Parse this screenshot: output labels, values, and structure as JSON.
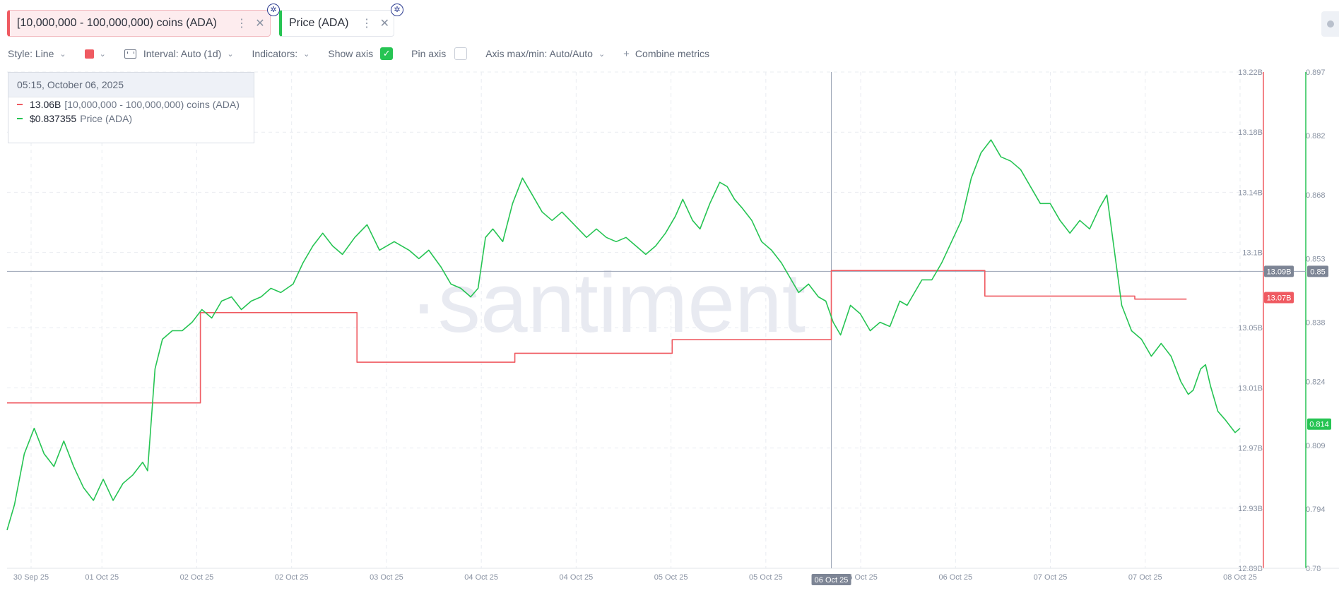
{
  "metrics": [
    {
      "label": "[10,000,000 - 100,000,000) coins (ADA)",
      "color": "#ef5a61"
    },
    {
      "label": "Price (ADA)",
      "color": "#26c453"
    }
  ],
  "toolbar": {
    "style": "Style: Line",
    "interval": "Interval: Auto (1d)",
    "indicators": "Indicators:",
    "show_axis": "Show axis",
    "pin_axis": "Pin axis",
    "axis_maxmin": "Axis max/min: Auto/Auto",
    "combine": "Combine metrics"
  },
  "tooltip": {
    "date": "05:15, October 06, 2025",
    "rows": [
      {
        "value": "13.06B",
        "name": "[10,000,000 - 100,000,000) coins (ADA)",
        "color": "#ef5a61"
      },
      {
        "value": "$0.837355",
        "name": "Price (ADA)",
        "color": "#26c453"
      }
    ]
  },
  "watermark": "·santiment",
  "chart_data": {
    "type": "line",
    "x_ticks": [
      "30 Sep 25",
      "01 Oct 25",
      "02 Oct 25",
      "02 Oct 25",
      "03 Oct 25",
      "04 Oct 25",
      "04 Oct 25",
      "05 Oct 25",
      "05 Oct 25",
      "06 Oct 25",
      "06 Oct 25",
      "07 Oct 25",
      "07 Oct 25",
      "08 Oct 25"
    ],
    "x_range": [
      0,
      1
    ],
    "crosshair": {
      "x": 0.6685,
      "label": "06 Oct 25",
      "left_value_label": "13.09B",
      "right_value_label": "0.85",
      "y_price": 0.85
    },
    "left_axis": {
      "ticks": [
        12.89,
        12.93,
        12.97,
        13.01,
        13.05,
        13.1,
        13.14,
        13.18,
        13.22
      ],
      "tick_labels": [
        "12.89B",
        "12.93B",
        "12.97B",
        "13.01B",
        "13.05B",
        "13.1B",
        "13.14B",
        "13.18B",
        "13.22B"
      ],
      "range": [
        12.89,
        13.22
      ],
      "color": "#ef5a61",
      "last_label": "13.07B",
      "last_value": 13.07
    },
    "right_axis": {
      "ticks": [
        0.78,
        0.794,
        0.809,
        0.824,
        0.838,
        0.853,
        0.868,
        0.882,
        0.897
      ],
      "tick_labels": [
        "0.78",
        "0.794",
        "0.809",
        "0.824",
        "0.838",
        "0.853",
        "0.868",
        "0.882",
        "0.897"
      ],
      "range": [
        0.78,
        0.897
      ],
      "color": "#26c453",
      "last_label": "0.814",
      "last_value": 0.814
    },
    "grid": true,
    "series": [
      {
        "name": "[10,000,000 - 100,000,000) coins (ADA)",
        "axis": "left",
        "step": true,
        "points": [
          [
            0,
            13.0
          ],
          [
            0.1568,
            13.0
          ],
          [
            0.1568,
            13.06
          ],
          [
            0.2838,
            13.06
          ],
          [
            0.2838,
            13.027
          ],
          [
            0.4118,
            13.027
          ],
          [
            0.4118,
            13.033
          ],
          [
            0.5394,
            13.033
          ],
          [
            0.5394,
            13.042
          ],
          [
            0.6685,
            13.042
          ],
          [
            0.6685,
            13.088
          ],
          [
            0.793,
            13.088
          ],
          [
            0.793,
            13.071
          ],
          [
            0.9146,
            13.071
          ],
          [
            0.9146,
            13.069
          ],
          [
            0.9566,
            13.069
          ]
        ]
      },
      {
        "name": "Price (ADA)",
        "axis": "right",
        "points": [
          [
            0,
            0.789
          ],
          [
            0.006,
            0.795
          ],
          [
            0.014,
            0.807
          ],
          [
            0.022,
            0.813
          ],
          [
            0.03,
            0.807
          ],
          [
            0.038,
            0.804
          ],
          [
            0.046,
            0.81
          ],
          [
            0.054,
            0.804
          ],
          [
            0.062,
            0.799
          ],
          [
            0.07,
            0.796
          ],
          [
            0.078,
            0.801
          ],
          [
            0.086,
            0.796
          ],
          [
            0.094,
            0.8
          ],
          [
            0.102,
            0.802
          ],
          [
            0.11,
            0.805
          ],
          [
            0.114,
            0.803
          ],
          [
            0.12,
            0.827
          ],
          [
            0.126,
            0.834
          ],
          [
            0.134,
            0.836
          ],
          [
            0.142,
            0.836
          ],
          [
            0.15,
            0.838
          ],
          [
            0.158,
            0.841
          ],
          [
            0.166,
            0.839
          ],
          [
            0.174,
            0.843
          ],
          [
            0.182,
            0.844
          ],
          [
            0.19,
            0.841
          ],
          [
            0.198,
            0.843
          ],
          [
            0.206,
            0.844
          ],
          [
            0.214,
            0.846
          ],
          [
            0.222,
            0.845
          ],
          [
            0.232,
            0.847
          ],
          [
            0.24,
            0.852
          ],
          [
            0.248,
            0.856
          ],
          [
            0.256,
            0.859
          ],
          [
            0.264,
            0.856
          ],
          [
            0.272,
            0.854
          ],
          [
            0.282,
            0.858
          ],
          [
            0.292,
            0.861
          ],
          [
            0.302,
            0.855
          ],
          [
            0.314,
            0.857
          ],
          [
            0.326,
            0.855
          ],
          [
            0.334,
            0.853
          ],
          [
            0.342,
            0.855
          ],
          [
            0.352,
            0.851
          ],
          [
            0.36,
            0.847
          ],
          [
            0.368,
            0.846
          ],
          [
            0.376,
            0.844
          ],
          [
            0.382,
            0.846
          ],
          [
            0.388,
            0.858
          ],
          [
            0.394,
            0.86
          ],
          [
            0.402,
            0.857
          ],
          [
            0.41,
            0.866
          ],
          [
            0.418,
            0.872
          ],
          [
            0.426,
            0.868
          ],
          [
            0.434,
            0.864
          ],
          [
            0.442,
            0.862
          ],
          [
            0.45,
            0.864
          ],
          [
            0.46,
            0.861
          ],
          [
            0.47,
            0.858
          ],
          [
            0.478,
            0.86
          ],
          [
            0.486,
            0.858
          ],
          [
            0.494,
            0.857
          ],
          [
            0.502,
            0.858
          ],
          [
            0.51,
            0.856
          ],
          [
            0.518,
            0.854
          ],
          [
            0.526,
            0.856
          ],
          [
            0.534,
            0.859
          ],
          [
            0.542,
            0.863
          ],
          [
            0.548,
            0.867
          ],
          [
            0.556,
            0.862
          ],
          [
            0.562,
            0.86
          ],
          [
            0.57,
            0.866
          ],
          [
            0.578,
            0.871
          ],
          [
            0.584,
            0.87
          ],
          [
            0.59,
            0.867
          ],
          [
            0.596,
            0.865
          ],
          [
            0.604,
            0.862
          ],
          [
            0.612,
            0.857
          ],
          [
            0.62,
            0.855
          ],
          [
            0.628,
            0.852
          ],
          [
            0.636,
            0.848
          ],
          [
            0.642,
            0.845
          ],
          [
            0.65,
            0.847
          ],
          [
            0.658,
            0.844
          ],
          [
            0.664,
            0.843
          ],
          [
            0.67,
            0.838
          ],
          [
            0.676,
            0.835
          ],
          [
            0.684,
            0.842
          ],
          [
            0.692,
            0.84
          ],
          [
            0.7,
            0.836
          ],
          [
            0.708,
            0.838
          ],
          [
            0.716,
            0.837
          ],
          [
            0.724,
            0.843
          ],
          [
            0.73,
            0.842
          ],
          [
            0.736,
            0.845
          ],
          [
            0.742,
            0.848
          ],
          [
            0.75,
            0.848
          ],
          [
            0.758,
            0.852
          ],
          [
            0.766,
            0.857
          ],
          [
            0.774,
            0.862
          ],
          [
            0.782,
            0.872
          ],
          [
            0.79,
            0.878
          ],
          [
            0.798,
            0.881
          ],
          [
            0.806,
            0.877
          ],
          [
            0.814,
            0.876
          ],
          [
            0.822,
            0.874
          ],
          [
            0.83,
            0.87
          ],
          [
            0.838,
            0.866
          ],
          [
            0.846,
            0.866
          ],
          [
            0.854,
            0.862
          ],
          [
            0.862,
            0.859
          ],
          [
            0.87,
            0.862
          ],
          [
            0.878,
            0.86
          ],
          [
            0.886,
            0.865
          ],
          [
            0.892,
            0.868
          ],
          [
            0.898,
            0.855
          ],
          [
            0.904,
            0.842
          ],
          [
            0.912,
            0.836
          ],
          [
            0.92,
            0.834
          ],
          [
            0.928,
            0.83
          ],
          [
            0.936,
            0.833
          ],
          [
            0.944,
            0.83
          ],
          [
            0.952,
            0.824
          ],
          [
            0.958,
            0.821
          ],
          [
            0.962,
            0.822
          ],
          [
            0.968,
            0.827
          ],
          [
            0.972,
            0.828
          ],
          [
            0.976,
            0.823
          ],
          [
            0.982,
            0.817
          ],
          [
            0.988,
            0.815
          ],
          [
            0.996,
            0.812
          ],
          [
            1,
            0.813
          ]
        ]
      }
    ]
  }
}
